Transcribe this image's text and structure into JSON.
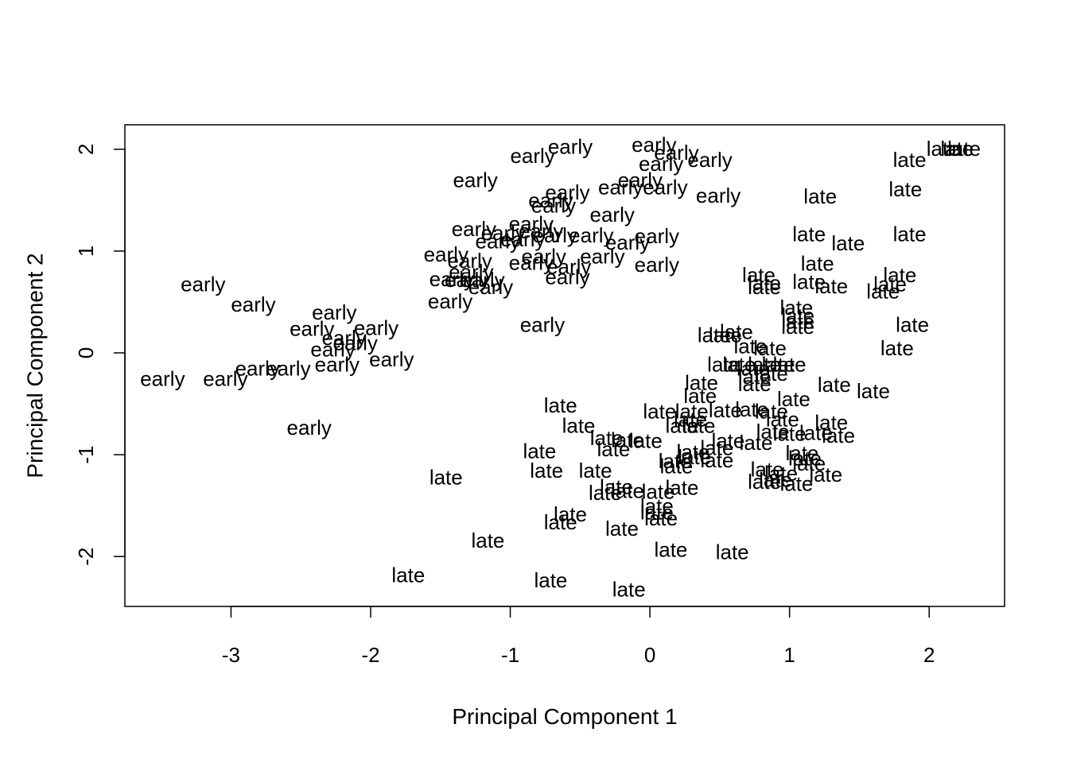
{
  "chart_data": {
    "type": "scatter",
    "title": "",
    "xlabel": "Principal Component 1",
    "ylabel": "Principal Component 2",
    "xlim": [
      -3.76,
      2.54
    ],
    "ylim": [
      -2.49,
      2.24
    ],
    "x_ticks": [
      -3,
      -2,
      -1,
      0,
      1,
      2
    ],
    "x_tick_labels": [
      "-3",
      "-2",
      "-1",
      "0",
      "1",
      "2"
    ],
    "y_ticks": [
      -2,
      -1,
      0,
      1,
      2
    ],
    "y_tick_labels": [
      "-2",
      "-1",
      "0",
      "1",
      "2"
    ],
    "grid": false,
    "legend": "none",
    "marker": "text label",
    "points": [
      {
        "label": "early",
        "x": -0.57,
        "y": 2.01
      },
      {
        "label": "early",
        "x": -0.84,
        "y": 1.92
      },
      {
        "label": "early",
        "x": 0.03,
        "y": 2.03
      },
      {
        "label": "early",
        "x": 0.19,
        "y": 1.95
      },
      {
        "label": "early",
        "x": 0.08,
        "y": 1.84
      },
      {
        "label": "early",
        "x": 0.43,
        "y": 1.88
      },
      {
        "label": "early",
        "x": -1.25,
        "y": 1.68
      },
      {
        "label": "early",
        "x": -0.07,
        "y": 1.68
      },
      {
        "label": "early",
        "x": -0.59,
        "y": 1.56
      },
      {
        "label": "early",
        "x": -0.71,
        "y": 1.48
      },
      {
        "label": "early",
        "x": -0.69,
        "y": 1.43
      },
      {
        "label": "early",
        "x": -0.21,
        "y": 1.61
      },
      {
        "label": "early",
        "x": 0.11,
        "y": 1.61
      },
      {
        "label": "early",
        "x": 0.49,
        "y": 1.53
      },
      {
        "label": "early",
        "x": -0.85,
        "y": 1.25
      },
      {
        "label": "early",
        "x": -1.26,
        "y": 1.2
      },
      {
        "label": "early",
        "x": -1.05,
        "y": 1.16
      },
      {
        "label": "early",
        "x": -0.78,
        "y": 1.18
      },
      {
        "label": "early",
        "x": -0.27,
        "y": 1.34
      },
      {
        "label": "early",
        "x": -1.09,
        "y": 1.08
      },
      {
        "label": "early",
        "x": -0.91,
        "y": 1.1
      },
      {
        "label": "early",
        "x": -0.68,
        "y": 1.14
      },
      {
        "label": "early",
        "x": -0.42,
        "y": 1.14
      },
      {
        "label": "early",
        "x": -0.16,
        "y": 1.07
      },
      {
        "label": "early",
        "x": 0.05,
        "y": 1.13
      },
      {
        "label": "early",
        "x": -1.46,
        "y": 0.95
      },
      {
        "label": "early",
        "x": -1.29,
        "y": 0.89
      },
      {
        "label": "early",
        "x": -0.76,
        "y": 0.93
      },
      {
        "label": "early",
        "x": -0.34,
        "y": 0.93
      },
      {
        "label": "early",
        "x": -1.28,
        "y": 0.78
      },
      {
        "label": "early",
        "x": -0.85,
        "y": 0.87
      },
      {
        "label": "early",
        "x": -0.58,
        "y": 0.83
      },
      {
        "label": "early",
        "x": 0.05,
        "y": 0.85
      },
      {
        "label": "early",
        "x": -1.42,
        "y": 0.71
      },
      {
        "label": "early",
        "x": -1.31,
        "y": 0.7
      },
      {
        "label": "early",
        "x": -1.2,
        "y": 0.7
      },
      {
        "label": "early",
        "x": -1.14,
        "y": 0.63
      },
      {
        "label": "early",
        "x": -0.59,
        "y": 0.73
      },
      {
        "label": "early",
        "x": -3.2,
        "y": 0.66
      },
      {
        "label": "early",
        "x": -2.84,
        "y": 0.46
      },
      {
        "label": "early",
        "x": -1.43,
        "y": 0.49
      },
      {
        "label": "early",
        "x": -2.26,
        "y": 0.38
      },
      {
        "label": "early",
        "x": -0.77,
        "y": 0.26
      },
      {
        "label": "early",
        "x": -2.42,
        "y": 0.22
      },
      {
        "label": "early",
        "x": -1.96,
        "y": 0.23
      },
      {
        "label": "early",
        "x": -2.19,
        "y": 0.13
      },
      {
        "label": "early",
        "x": -2.11,
        "y": 0.08
      },
      {
        "label": "early",
        "x": -2.27,
        "y": 0.02
      },
      {
        "label": "early",
        "x": -1.85,
        "y": -0.08
      },
      {
        "label": "early",
        "x": -2.24,
        "y": -0.13
      },
      {
        "label": "early",
        "x": -2.81,
        "y": -0.17
      },
      {
        "label": "early",
        "x": -2.59,
        "y": -0.17
      },
      {
        "label": "early",
        "x": -3.49,
        "y": -0.27
      },
      {
        "label": "early",
        "x": -3.04,
        "y": -0.27
      },
      {
        "label": "early",
        "x": -2.44,
        "y": -0.75
      },
      {
        "label": "late",
        "x": 2.1,
        "y": 1.99
      },
      {
        "label": "late",
        "x": 2.2,
        "y": 1.99
      },
      {
        "label": "late",
        "x": 2.25,
        "y": 1.99
      },
      {
        "label": "late",
        "x": 1.86,
        "y": 1.88
      },
      {
        "label": "late",
        "x": 1.83,
        "y": 1.59
      },
      {
        "label": "late",
        "x": 1.22,
        "y": 1.52
      },
      {
        "label": "late",
        "x": 1.14,
        "y": 1.15
      },
      {
        "label": "late",
        "x": 1.42,
        "y": 1.06
      },
      {
        "label": "late",
        "x": 1.86,
        "y": 1.15
      },
      {
        "label": "late",
        "x": 1.2,
        "y": 0.86
      },
      {
        "label": "late",
        "x": 0.78,
        "y": 0.75
      },
      {
        "label": "late",
        "x": 0.82,
        "y": 0.67
      },
      {
        "label": "late",
        "x": 0.82,
        "y": 0.63
      },
      {
        "label": "late",
        "x": 1.14,
        "y": 0.68
      },
      {
        "label": "late",
        "x": 1.3,
        "y": 0.64
      },
      {
        "label": "late",
        "x": 1.79,
        "y": 0.75
      },
      {
        "label": "late",
        "x": 1.72,
        "y": 0.66
      },
      {
        "label": "late",
        "x": 1.67,
        "y": 0.59
      },
      {
        "label": "late",
        "x": 1.05,
        "y": 0.43
      },
      {
        "label": "late",
        "x": 1.06,
        "y": 0.35
      },
      {
        "label": "late",
        "x": 1.06,
        "y": 0.29
      },
      {
        "label": "late",
        "x": 1.06,
        "y": 0.24
      },
      {
        "label": "late",
        "x": 1.88,
        "y": 0.26
      },
      {
        "label": "late",
        "x": 0.46,
        "y": 0.16
      },
      {
        "label": "late",
        "x": 0.54,
        "y": 0.16
      },
      {
        "label": "late",
        "x": 0.62,
        "y": 0.19
      },
      {
        "label": "late",
        "x": 0.72,
        "y": 0.05
      },
      {
        "label": "late",
        "x": 0.86,
        "y": 0.03
      },
      {
        "label": "late",
        "x": 1.77,
        "y": 0.03
      },
      {
        "label": "late",
        "x": 0.53,
        "y": -0.13
      },
      {
        "label": "late",
        "x": 0.64,
        "y": -0.13
      },
      {
        "label": "late",
        "x": 0.74,
        "y": -0.17
      },
      {
        "label": "late",
        "x": 0.82,
        "y": -0.13
      },
      {
        "label": "late",
        "x": 0.92,
        "y": -0.13
      },
      {
        "label": "late",
        "x": 1.0,
        "y": -0.13
      },
      {
        "label": "late",
        "x": 0.75,
        "y": -0.25
      },
      {
        "label": "late",
        "x": 0.87,
        "y": -0.22
      },
      {
        "label": "late",
        "x": 0.37,
        "y": -0.31
      },
      {
        "label": "late",
        "x": 0.75,
        "y": -0.32
      },
      {
        "label": "late",
        "x": 1.32,
        "y": -0.33
      },
      {
        "label": "late",
        "x": 1.6,
        "y": -0.39
      },
      {
        "label": "late",
        "x": 0.36,
        "y": -0.44
      },
      {
        "label": "late",
        "x": 1.03,
        "y": -0.47
      },
      {
        "label": "late",
        "x": -0.64,
        "y": -0.53
      },
      {
        "label": "late",
        "x": 0.07,
        "y": -0.59
      },
      {
        "label": "late",
        "x": 0.3,
        "y": -0.59
      },
      {
        "label": "late",
        "x": 0.54,
        "y": -0.58
      },
      {
        "label": "late",
        "x": 0.73,
        "y": -0.57
      },
      {
        "label": "late",
        "x": 0.87,
        "y": -0.59
      },
      {
        "label": "late",
        "x": 0.29,
        "y": -0.67
      },
      {
        "label": "late",
        "x": 0.95,
        "y": -0.67
      },
      {
        "label": "late",
        "x": 1.3,
        "y": -0.7
      },
      {
        "label": "late",
        "x": -0.51,
        "y": -0.73
      },
      {
        "label": "late",
        "x": 0.23,
        "y": -0.73
      },
      {
        "label": "late",
        "x": 0.35,
        "y": -0.73
      },
      {
        "label": "late",
        "x": 0.88,
        "y": -0.79
      },
      {
        "label": "late",
        "x": 1.0,
        "y": -0.81
      },
      {
        "label": "late",
        "x": 1.35,
        "y": -0.83
      },
      {
        "label": "late",
        "x": 1.19,
        "y": -0.8
      },
      {
        "label": "late",
        "x": -0.31,
        "y": -0.85
      },
      {
        "label": "late",
        "x": -0.16,
        "y": -0.87
      },
      {
        "label": "late",
        "x": -0.03,
        "y": -0.88
      },
      {
        "label": "late",
        "x": 0.56,
        "y": -0.88
      },
      {
        "label": "late",
        "x": 0.76,
        "y": -0.9
      },
      {
        "label": "late",
        "x": -0.26,
        "y": -0.96
      },
      {
        "label": "late",
        "x": 0.31,
        "y": -0.99
      },
      {
        "label": "late",
        "x": 0.48,
        "y": -0.95
      },
      {
        "label": "late",
        "x": 1.09,
        "y": -1.0
      },
      {
        "label": "late",
        "x": 1.11,
        "y": -1.05
      },
      {
        "label": "late",
        "x": -0.79,
        "y": -0.98
      },
      {
        "label": "late",
        "x": 0.18,
        "y": -1.08
      },
      {
        "label": "late",
        "x": 0.32,
        "y": -1.04
      },
      {
        "label": "late",
        "x": 0.48,
        "y": -1.07
      },
      {
        "label": "late",
        "x": 1.14,
        "y": -1.1
      },
      {
        "label": "late",
        "x": 0.19,
        "y": -1.13
      },
      {
        "label": "late",
        "x": 0.84,
        "y": -1.16
      },
      {
        "label": "late",
        "x": -1.46,
        "y": -1.24
      },
      {
        "label": "late",
        "x": -0.74,
        "y": -1.17
      },
      {
        "label": "late",
        "x": -0.39,
        "y": -1.17
      },
      {
        "label": "late",
        "x": 0.94,
        "y": -1.2
      },
      {
        "label": "late",
        "x": 1.26,
        "y": -1.21
      },
      {
        "label": "late",
        "x": 0.82,
        "y": -1.28
      },
      {
        "label": "late",
        "x": 0.9,
        "y": -1.26
      },
      {
        "label": "late",
        "x": 1.05,
        "y": -1.3
      },
      {
        "label": "late",
        "x": -0.24,
        "y": -1.33
      },
      {
        "label": "late",
        "x": -0.16,
        "y": -1.37
      },
      {
        "label": "late",
        "x": -0.32,
        "y": -1.39
      },
      {
        "label": "late",
        "x": 0.06,
        "y": -1.38
      },
      {
        "label": "late",
        "x": 0.23,
        "y": -1.34
      },
      {
        "label": "late",
        "x": 0.05,
        "y": -1.52
      },
      {
        "label": "late",
        "x": 0.05,
        "y": -1.58
      },
      {
        "label": "late",
        "x": 0.08,
        "y": -1.64
      },
      {
        "label": "late",
        "x": -0.57,
        "y": -1.6
      },
      {
        "label": "late",
        "x": -0.64,
        "y": -1.68
      },
      {
        "label": "late",
        "x": -0.2,
        "y": -1.74
      },
      {
        "label": "late",
        "x": -1.16,
        "y": -1.86
      },
      {
        "label": "late",
        "x": 0.15,
        "y": -1.95
      },
      {
        "label": "late",
        "x": 0.59,
        "y": -1.97
      },
      {
        "label": "late",
        "x": -1.73,
        "y": -2.2
      },
      {
        "label": "late",
        "x": -0.71,
        "y": -2.25
      },
      {
        "label": "late",
        "x": -0.15,
        "y": -2.34
      }
    ]
  }
}
